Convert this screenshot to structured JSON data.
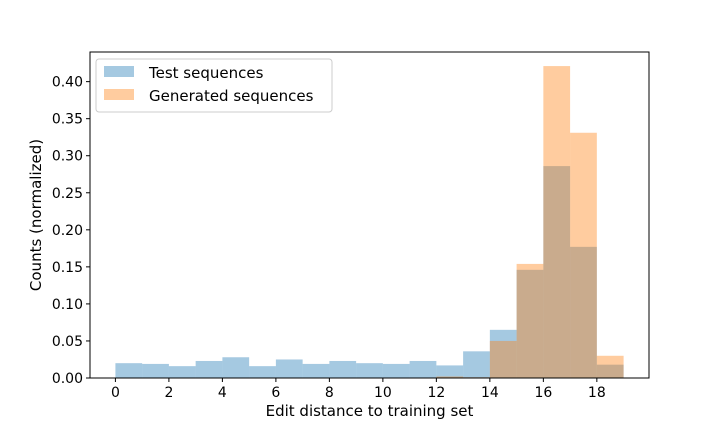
{
  "chart_data": {
    "type": "bar",
    "title": "",
    "xlabel": "Edit distance to training set",
    "ylabel": "Counts (normalized)",
    "xlim": [
      -0.95,
      19.95
    ],
    "ylim": [
      0,
      0.44
    ],
    "xticks": [
      "0",
      "2",
      "4",
      "6",
      "8",
      "10",
      "12",
      "14",
      "16",
      "18"
    ],
    "yticks": [
      "0.00",
      "0.05",
      "0.10",
      "0.15",
      "0.20",
      "0.25",
      "0.30",
      "0.35",
      "0.40"
    ],
    "bin_width": 1,
    "bin_starts": [
      0,
      1,
      2,
      3,
      4,
      5,
      6,
      7,
      8,
      9,
      10,
      11,
      12,
      13,
      14,
      15,
      16,
      17,
      18
    ],
    "series": [
      {
        "name": "Test sequences",
        "color": "#1f77b4",
        "alpha": 0.4,
        "values": [
          0.02,
          0.019,
          0.016,
          0.023,
          0.028,
          0.016,
          0.025,
          0.019,
          0.023,
          0.02,
          0.019,
          0.023,
          0.017,
          0.036,
          0.065,
          0.146,
          0.286,
          0.177,
          0.018
        ]
      },
      {
        "name": "Generated sequences",
        "color": "#ff7f0e",
        "alpha": 0.4,
        "values": [
          0,
          0,
          0,
          0,
          0,
          0,
          0,
          0,
          0,
          0,
          0,
          0,
          0.002,
          0.001,
          0.05,
          0.154,
          0.421,
          0.331,
          0.03
        ]
      }
    ],
    "legend_position": "top-left",
    "grid": false
  }
}
